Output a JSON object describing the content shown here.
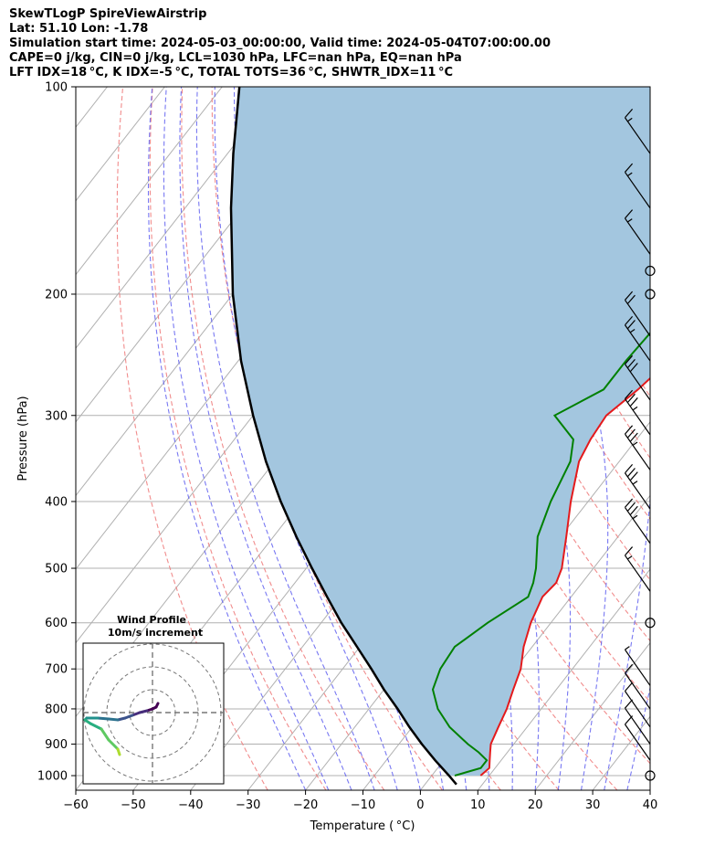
{
  "header": {
    "line1": "SkewTLogP SpireViewAirstrip",
    "line2": "Lat: 51.10   Lon: -1.78",
    "line3": "Simulation start time: 2024-05-03_00:00:00, Valid time: 2024-05-04T07:00:00.00",
    "line4": "CAPE=0 j/kg, CIN=0 j/kg, LCL=1030 hPa, LFC=nan hPa, EQ=nan hPa",
    "line5": "LFT IDX=18 °C, K IDX=-5 °C, TOTAL TOTS=36 °C, SHWTR_IDX=11 °C"
  },
  "chart_data": {
    "type": "line",
    "xlabel": "Temperature ( °C)",
    "ylabel": "Pressure (hPa)",
    "xlim": [
      -60,
      40
    ],
    "ylim": [
      1050,
      100
    ],
    "y_scale": "log",
    "x_ticks": [
      "−60",
      "−50",
      "−40",
      "−30",
      "−20",
      "−10",
      "0",
      "10",
      "20",
      "30",
      "40"
    ],
    "y_ticks": [
      "100",
      "200",
      "300",
      "400",
      "500",
      "600",
      "700",
      "800",
      "900",
      "1000"
    ],
    "grid": true,
    "colors": {
      "temperature": "#e41a1c",
      "dewpoint": "#008000",
      "parcel": "#000000",
      "shade": "#a3c6df",
      "dry_adiabat": "#f08080",
      "moist_adiabat": "#6060f0",
      "isotherm": "#b0b0b0"
    },
    "series": [
      {
        "pressure": [
          1000,
          975,
          950,
          925,
          900,
          850,
          800,
          750,
          700,
          650,
          600,
          550,
          525,
          500,
          450,
          400,
          350,
          325,
          300,
          275,
          250,
          225,
          200,
          175,
          150,
          125,
          100
        ],
        "temperature": [
          8.5,
          9.0,
          8.0,
          7.0,
          6.0,
          5.0,
          4.0,
          2.5,
          1.0,
          -1.5,
          -3.5,
          -5.0,
          -4.5,
          -5.5,
          -9.0,
          -13.0,
          -17.0,
          -18.0,
          -18.5,
          -16.5,
          -15.0,
          -13.0,
          -11.5,
          -7.5,
          -4.0,
          0.0,
          4.0
        ]
      },
      {
        "pressure": [
          1000,
          975,
          950,
          925,
          900,
          850,
          800,
          750,
          700,
          650,
          600,
          550,
          525,
          500,
          450,
          400,
          350,
          325,
          300,
          275,
          250,
          225,
          200,
          190,
          150,
          125,
          100
        ],
        "dewpoint": [
          4.0,
          7.5,
          7.5,
          5.0,
          2.0,
          -3.5,
          -8.0,
          -11.5,
          -13.0,
          -13.5,
          -11.0,
          -7.5,
          -8.5,
          -10.0,
          -14.0,
          -16.5,
          -18.5,
          -21.0,
          -27.5,
          -22.5,
          -22.5,
          -22.0,
          -22.0,
          -28.5,
          -31.0,
          -33.0,
          -36.0
        ]
      },
      {
        "pressure": [
          1030,
          1000,
          950,
          900,
          850,
          800,
          750,
          700,
          650,
          600,
          550,
          500,
          450,
          400,
          350,
          300,
          250,
          200,
          150,
          125,
          100
        ],
        "parcel": [
          5.5,
          3.0,
          -1.5,
          -6.0,
          -10.5,
          -15.0,
          -20.0,
          -25.0,
          -30.5,
          -36.5,
          -42.5,
          -49.0,
          -56.0,
          -63.5,
          -71.5,
          -80.0,
          -89.5,
          -100.0,
          -112.0,
          -119.0,
          -127.0
        ]
      }
    ],
    "wind_barbs": {
      "pressure": [
        125,
        150,
        175,
        185,
        200,
        230,
        250,
        285,
        320,
        360,
        410,
        460,
        540,
        600,
        740,
        800,
        850,
        900,
        950,
        1000
      ],
      "speed_kt": [
        15,
        15,
        15,
        0,
        0,
        20,
        25,
        30,
        35,
        35,
        35,
        35,
        15,
        0,
        5,
        10,
        10,
        10,
        10,
        0
      ]
    },
    "inset": {
      "title": "Wind Profile",
      "subtitle": "10m/s increment",
      "colormap": "viridis"
    }
  }
}
